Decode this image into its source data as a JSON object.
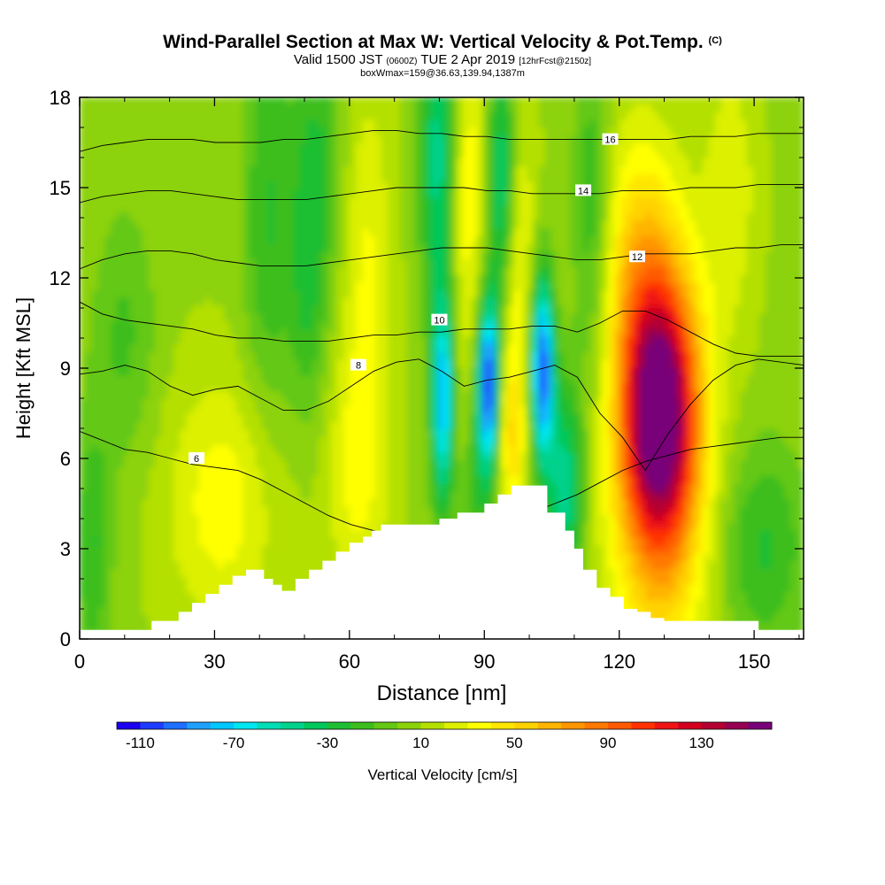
{
  "header": {
    "title": "Wind-Parallel Section at Max W: Vertical Velocity & Pot.Temp.",
    "title_mark": "(C)",
    "valid_prefix": "Valid 1500 JST",
    "valid_utc": "(0600Z)",
    "valid_date": "TUE 2 Apr 2019",
    "forecast_info": "[12hrFcst@2150z]",
    "box_info": "boxWmax=159@36.63,139.94,1387m"
  },
  "chart_data": {
    "type": "heatmap",
    "xlabel": "Distance [nm]",
    "ylabel": "Height [Kft MSL]",
    "xlim": [
      0,
      161
    ],
    "ylim": [
      0,
      18
    ],
    "x_ticks": [
      0,
      30,
      60,
      90,
      120,
      150
    ],
    "y_ticks": [
      0,
      3,
      6,
      9,
      12,
      15,
      18
    ],
    "colorbar": {
      "label": "Vertical Velocity [cm/s]",
      "min": -120,
      "max": 150,
      "step": 10,
      "tick_labels": [
        "-110",
        "-70",
        "-30",
        "10",
        "50",
        "90",
        "130"
      ],
      "colors": [
        "#1c00f0",
        "#1e3cff",
        "#1e6eff",
        "#1ea0ff",
        "#00c8ff",
        "#00e6f0",
        "#00dcb4",
        "#00d28c",
        "#00c85a",
        "#1ebe32",
        "#3cbe1e",
        "#64c814",
        "#8cd20a",
        "#b4e000",
        "#dcf000",
        "#ffff00",
        "#ffe600",
        "#ffd200",
        "#ffb400",
        "#ff9600",
        "#ff7800",
        "#ff5a00",
        "#ff3200",
        "#f01414",
        "#d2001e",
        "#b40032",
        "#960050",
        "#780078"
      ]
    },
    "terrain_profile": {
      "x": [
        0,
        16,
        16,
        22,
        22,
        25,
        25,
        28,
        28,
        31,
        31,
        34,
        34,
        37,
        37,
        41,
        41,
        43,
        43,
        45,
        45,
        48,
        48,
        51,
        51,
        54,
        54,
        57,
        57,
        60,
        60,
        63,
        63,
        65,
        65,
        67,
        67,
        70,
        70,
        75,
        75,
        80,
        80,
        84,
        84,
        87,
        87,
        90,
        90,
        93,
        93,
        96,
        96,
        100,
        100,
        104,
        104,
        108,
        108,
        110,
        110,
        112,
        112,
        115,
        115,
        118,
        118,
        121,
        121,
        124,
        124,
        127,
        127,
        130,
        130,
        135,
        135,
        140,
        140,
        145,
        145,
        151,
        151,
        154,
        154,
        158,
        158,
        161
      ],
      "top_kft": [
        0.3,
        0.3,
        0.6,
        0.6,
        0.9,
        0.9,
        1.2,
        1.2,
        1.5,
        1.5,
        1.8,
        1.8,
        2.1,
        2.1,
        2.3,
        2.3,
        2.0,
        2.0,
        1.8,
        1.8,
        1.6,
        1.6,
        2.0,
        2.0,
        2.3,
        2.3,
        2.6,
        2.6,
        2.9,
        2.9,
        3.2,
        3.2,
        3.4,
        3.4,
        3.6,
        3.6,
        3.8,
        3.8,
        3.8,
        3.8,
        3.8,
        3.8,
        4.0,
        4.0,
        4.2,
        4.2,
        4.2,
        4.2,
        4.5,
        4.5,
        4.8,
        4.8,
        5.1,
        5.1,
        5.1,
        5.1,
        4.2,
        4.2,
        3.6,
        3.6,
        3.0,
        3.0,
        2.3,
        2.3,
        1.7,
        1.7,
        1.4,
        1.4,
        1.0,
        1.0,
        0.9,
        0.9,
        0.7,
        0.7,
        0.6,
        0.6,
        0.6,
        0.6,
        0.6,
        0.6,
        0.6,
        0.6,
        0.3,
        0.3,
        0.3,
        0.3,
        0.3,
        0.3
      ]
    },
    "isentropes": [
      {
        "label": "6",
        "y_kft": [
          6.9,
          6.6,
          6.3,
          6.2,
          6.0,
          5.8,
          5.7,
          5.6,
          5.3,
          4.9,
          4.5,
          4.1,
          3.8,
          3.6,
          3.4,
          3.4,
          3.5,
          3.7,
          3.8,
          3.9,
          4.2,
          4.5,
          4.8,
          5.2,
          5.6,
          5.9,
          6.1,
          6.3,
          6.4,
          6.5,
          6.6,
          6.7,
          6.7
        ],
        "label_at": [
          26,
          6.0
        ]
      },
      {
        "label": "8",
        "y_kft": [
          8.8,
          8.9,
          9.1,
          8.9,
          8.4,
          8.1,
          8.3,
          8.4,
          8.0,
          7.6,
          7.6,
          7.9,
          8.4,
          8.9,
          9.2,
          9.3,
          8.9,
          8.4,
          8.6,
          8.7,
          8.9,
          9.1,
          8.7,
          7.5,
          6.7,
          5.6,
          6.8,
          7.8,
          8.6,
          9.1,
          9.3,
          9.2,
          9.1
        ],
        "label_at": [
          62,
          9.1
        ]
      },
      {
        "label": "10",
        "y_kft": [
          11.2,
          10.8,
          10.6,
          10.5,
          10.4,
          10.3,
          10.1,
          10.0,
          10.0,
          9.9,
          9.9,
          9.9,
          10.0,
          10.1,
          10.1,
          10.2,
          10.2,
          10.3,
          10.3,
          10.3,
          10.4,
          10.4,
          10.2,
          10.5,
          10.9,
          10.9,
          10.6,
          10.2,
          9.8,
          9.5,
          9.4,
          9.4,
          9.4
        ],
        "label_at": [
          80,
          10.6
        ]
      },
      {
        "label": "12",
        "y_kft": [
          12.3,
          12.6,
          12.8,
          12.9,
          12.9,
          12.8,
          12.6,
          12.5,
          12.4,
          12.4,
          12.4,
          12.5,
          12.6,
          12.7,
          12.8,
          12.9,
          13.0,
          13.0,
          13.0,
          12.9,
          12.8,
          12.7,
          12.6,
          12.6,
          12.7,
          12.8,
          12.8,
          12.8,
          12.9,
          13.0,
          13.0,
          13.1,
          13.1
        ],
        "label_at": [
          124,
          12.7
        ]
      },
      {
        "label": "14",
        "y_kft": [
          14.5,
          14.7,
          14.8,
          14.9,
          14.9,
          14.8,
          14.7,
          14.6,
          14.6,
          14.6,
          14.6,
          14.7,
          14.8,
          14.9,
          15.0,
          15.0,
          15.0,
          15.0,
          14.9,
          14.9,
          14.8,
          14.8,
          14.8,
          14.8,
          14.9,
          14.9,
          14.9,
          15.0,
          15.0,
          15.0,
          15.1,
          15.1,
          15.1
        ],
        "label_at": [
          112,
          14.9
        ]
      },
      {
        "label": "16",
        "y_kft": [
          16.2,
          16.4,
          16.5,
          16.6,
          16.6,
          16.6,
          16.5,
          16.5,
          16.5,
          16.6,
          16.6,
          16.7,
          16.8,
          16.9,
          16.9,
          16.8,
          16.8,
          16.7,
          16.7,
          16.6,
          16.6,
          16.6,
          16.6,
          16.6,
          16.6,
          16.6,
          16.6,
          16.7,
          16.7,
          16.7,
          16.8,
          16.8,
          16.8
        ],
        "label_at": [
          118,
          16.6
        ]
      }
    ]
  }
}
